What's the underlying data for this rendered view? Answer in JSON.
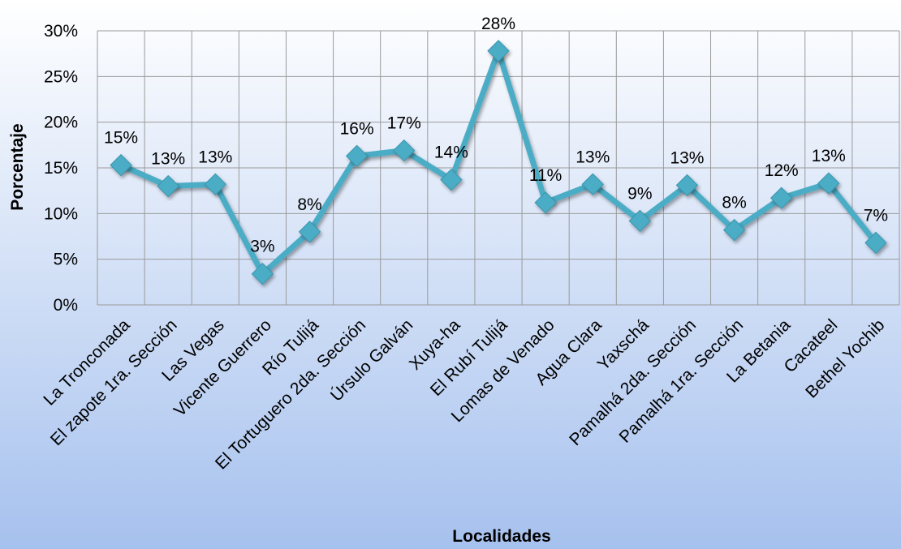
{
  "chart_data": {
    "type": "line",
    "xlabel": "Localidades",
    "ylabel": "Porcentaje",
    "ylim": [
      0,
      30
    ],
    "yticks": [
      "0%",
      "5%",
      "10%",
      "15%",
      "20%",
      "25%",
      "30%"
    ],
    "grid": true,
    "legend": "none",
    "categories": [
      "La Tronconada",
      "El zapote 1ra. Sección",
      "Las Vegas",
      "Vicente Guerrero",
      "Río Tulijá",
      "El Tortuguero 2da. Sección",
      "Úrsulo Galván",
      "Xuya-ha",
      "El Rubí Tulijá",
      "Lomas de Venado",
      "Agua Clara",
      "Yaxschá",
      "Pamalhá 2da. Sección",
      "Pamalhá 1ra. Sección",
      "La Betania",
      "Cacateel",
      "Bethel Yochib"
    ],
    "values": [
      15.3,
      13.0,
      13.2,
      3.4,
      8.0,
      16.3,
      16.9,
      13.7,
      27.8,
      11.2,
      13.2,
      9.2,
      13.1,
      8.2,
      11.7,
      13.3,
      6.8
    ],
    "labels": [
      "15%",
      "13%",
      "13%",
      "3%",
      "8%",
      "16%",
      "17%",
      "14%",
      "28%",
      "11%",
      "13%",
      "9%",
      "13%",
      "8%",
      "12%",
      "13%",
      "7%"
    ],
    "colors": {
      "line": "#4BACC6",
      "grid": "#9a9a9a",
      "background_top": "#FFFFFF",
      "background_bottom": "#A6C1EE"
    }
  }
}
